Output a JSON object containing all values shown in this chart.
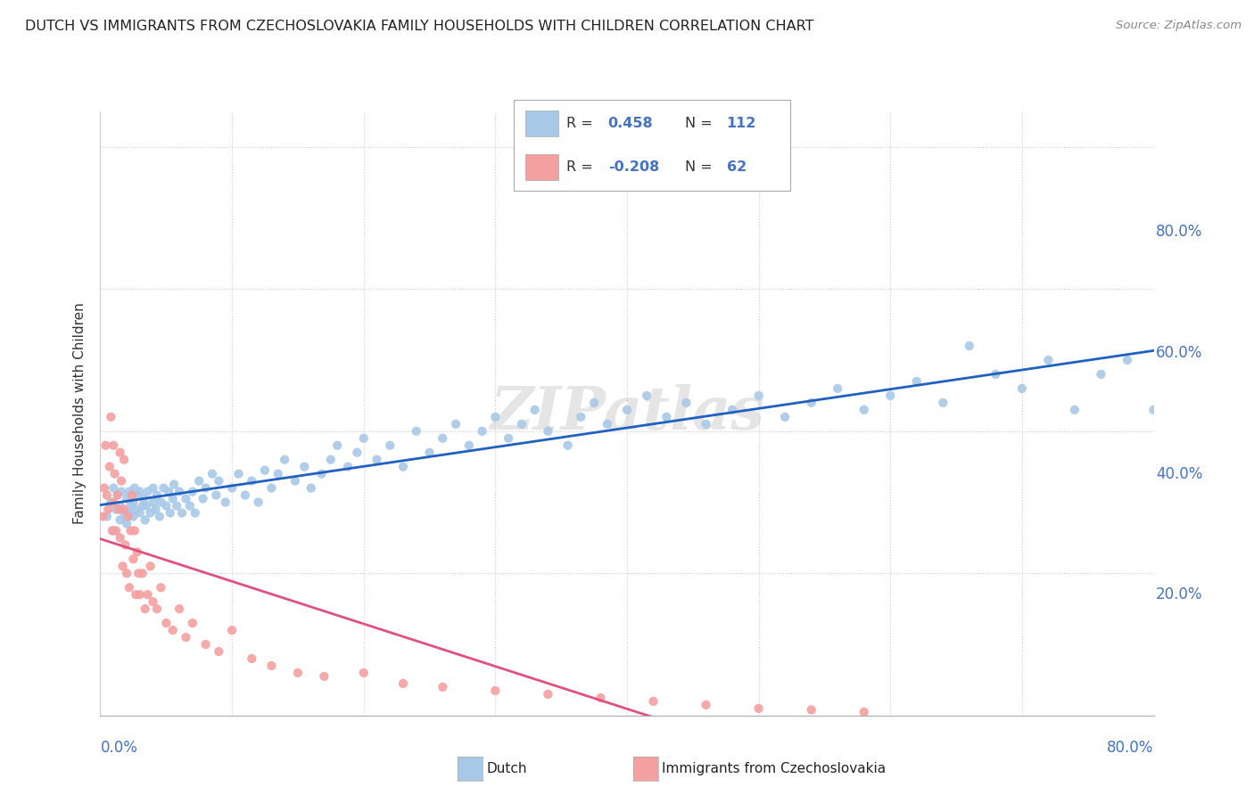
{
  "title": "DUTCH VS IMMIGRANTS FROM CZECHOSLOVAKIA FAMILY HOUSEHOLDS WITH CHILDREN CORRELATION CHART",
  "source": "Source: ZipAtlas.com",
  "ylabel": "Family Households with Children",
  "xmin": 0.0,
  "xmax": 0.8,
  "ymin": 0.0,
  "ymax": 0.85,
  "blue_R": 0.458,
  "blue_N": 112,
  "pink_R": -0.208,
  "pink_N": 62,
  "blue_color": "#A8C8E8",
  "pink_color": "#F4A0A0",
  "blue_line_color": "#2060C0",
  "pink_line_color": "#E05080",
  "legend_label_blue": "Dutch",
  "legend_label_pink": "Immigrants from Czechoslovakia",
  "axis_label_color": "#4472C4",
  "background_color": "#FFFFFF",
  "blue_x": [
    0.005,
    0.008,
    0.01,
    0.01,
    0.012,
    0.013,
    0.015,
    0.015,
    0.016,
    0.018,
    0.02,
    0.02,
    0.022,
    0.022,
    0.023,
    0.025,
    0.025,
    0.026,
    0.027,
    0.028,
    0.03,
    0.03,
    0.032,
    0.033,
    0.034,
    0.035,
    0.036,
    0.038,
    0.04,
    0.04,
    0.042,
    0.043,
    0.045,
    0.046,
    0.048,
    0.05,
    0.052,
    0.053,
    0.055,
    0.056,
    0.058,
    0.06,
    0.062,
    0.065,
    0.068,
    0.07,
    0.072,
    0.075,
    0.078,
    0.08,
    0.085,
    0.088,
    0.09,
    0.095,
    0.1,
    0.105,
    0.11,
    0.115,
    0.12,
    0.125,
    0.13,
    0.135,
    0.14,
    0.148,
    0.155,
    0.16,
    0.168,
    0.175,
    0.18,
    0.188,
    0.195,
    0.2,
    0.21,
    0.22,
    0.23,
    0.24,
    0.25,
    0.26,
    0.27,
    0.28,
    0.29,
    0.3,
    0.31,
    0.32,
    0.33,
    0.34,
    0.355,
    0.365,
    0.375,
    0.385,
    0.4,
    0.415,
    0.43,
    0.445,
    0.46,
    0.48,
    0.5,
    0.52,
    0.54,
    0.56,
    0.58,
    0.6,
    0.62,
    0.64,
    0.66,
    0.68,
    0.7,
    0.72,
    0.74,
    0.76,
    0.78,
    0.8
  ],
  "blue_y": [
    0.28,
    0.3,
    0.26,
    0.32,
    0.29,
    0.31,
    0.275,
    0.295,
    0.315,
    0.285,
    0.27,
    0.305,
    0.285,
    0.315,
    0.295,
    0.28,
    0.3,
    0.32,
    0.29,
    0.31,
    0.285,
    0.315,
    0.295,
    0.305,
    0.275,
    0.295,
    0.315,
    0.285,
    0.3,
    0.32,
    0.29,
    0.31,
    0.28,
    0.3,
    0.32,
    0.295,
    0.315,
    0.285,
    0.305,
    0.325,
    0.295,
    0.315,
    0.285,
    0.305,
    0.295,
    0.315,
    0.285,
    0.33,
    0.305,
    0.32,
    0.34,
    0.31,
    0.33,
    0.3,
    0.32,
    0.34,
    0.31,
    0.33,
    0.3,
    0.345,
    0.32,
    0.34,
    0.36,
    0.33,
    0.35,
    0.32,
    0.34,
    0.36,
    0.38,
    0.35,
    0.37,
    0.39,
    0.36,
    0.38,
    0.35,
    0.4,
    0.37,
    0.39,
    0.41,
    0.38,
    0.4,
    0.42,
    0.39,
    0.41,
    0.43,
    0.4,
    0.38,
    0.42,
    0.44,
    0.41,
    0.43,
    0.45,
    0.42,
    0.44,
    0.41,
    0.43,
    0.45,
    0.42,
    0.44,
    0.46,
    0.43,
    0.45,
    0.47,
    0.44,
    0.52,
    0.48,
    0.46,
    0.5,
    0.43,
    0.48,
    0.5,
    0.43
  ],
  "pink_x": [
    0.002,
    0.003,
    0.004,
    0.005,
    0.006,
    0.007,
    0.008,
    0.009,
    0.01,
    0.01,
    0.011,
    0.012,
    0.013,
    0.014,
    0.015,
    0.015,
    0.016,
    0.017,
    0.018,
    0.018,
    0.019,
    0.02,
    0.021,
    0.022,
    0.023,
    0.024,
    0.025,
    0.026,
    0.027,
    0.028,
    0.029,
    0.03,
    0.032,
    0.034,
    0.036,
    0.038,
    0.04,
    0.043,
    0.046,
    0.05,
    0.055,
    0.06,
    0.065,
    0.07,
    0.08,
    0.09,
    0.1,
    0.115,
    0.13,
    0.15,
    0.17,
    0.2,
    0.23,
    0.26,
    0.3,
    0.34,
    0.38,
    0.42,
    0.46,
    0.5,
    0.54,
    0.58
  ],
  "pink_y": [
    0.28,
    0.32,
    0.38,
    0.31,
    0.29,
    0.35,
    0.42,
    0.26,
    0.38,
    0.3,
    0.34,
    0.26,
    0.31,
    0.29,
    0.37,
    0.25,
    0.33,
    0.21,
    0.29,
    0.36,
    0.24,
    0.2,
    0.28,
    0.18,
    0.26,
    0.31,
    0.22,
    0.26,
    0.17,
    0.23,
    0.2,
    0.17,
    0.2,
    0.15,
    0.17,
    0.21,
    0.16,
    0.15,
    0.18,
    0.13,
    0.12,
    0.15,
    0.11,
    0.13,
    0.1,
    0.09,
    0.12,
    0.08,
    0.07,
    0.06,
    0.055,
    0.06,
    0.045,
    0.04,
    0.035,
    0.03,
    0.025,
    0.02,
    0.015,
    0.01,
    0.008,
    0.005
  ]
}
